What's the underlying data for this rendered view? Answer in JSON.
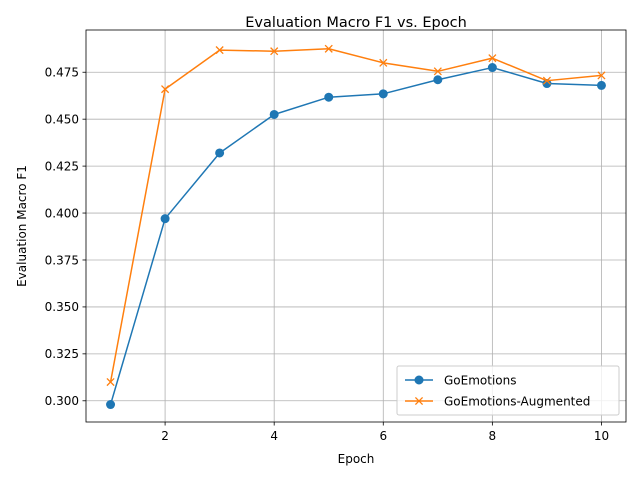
{
  "chart_data": {
    "type": "line",
    "title": "Evaluation Macro F1 vs. Epoch",
    "xlabel": "Epoch",
    "ylabel": "Evaluation Macro F1",
    "x": [
      1,
      2,
      3,
      4,
      5,
      6,
      7,
      8,
      9,
      10
    ],
    "xlim": [
      0.55,
      10.45
    ],
    "ylim": [
      0.2887,
      0.4975
    ],
    "xticks": [
      2,
      4,
      6,
      8,
      10
    ],
    "yticks": [
      0.3,
      0.325,
      0.35,
      0.375,
      0.4,
      0.425,
      0.45,
      0.475
    ],
    "xtick_labels": [
      "2",
      "4",
      "6",
      "8",
      "10"
    ],
    "ytick_labels": [
      "0.300",
      "0.325",
      "0.350",
      "0.375",
      "0.400",
      "0.425",
      "0.450",
      "0.475"
    ],
    "grid": true,
    "legend_position": "lower-right",
    "series": [
      {
        "name": "GoEmotions",
        "color": "#1f77b4",
        "marker": "circle",
        "values": [
          0.298,
          0.397,
          0.432,
          0.4525,
          0.4617,
          0.4635,
          0.471,
          0.4775,
          0.469,
          0.468
        ]
      },
      {
        "name": "GoEmotions-Augmented",
        "color": "#ff7f0e",
        "marker": "x",
        "values": [
          0.31,
          0.466,
          0.4868,
          0.4862,
          0.4875,
          0.48,
          0.4755,
          0.4825,
          0.4705,
          0.4733
        ]
      }
    ]
  }
}
